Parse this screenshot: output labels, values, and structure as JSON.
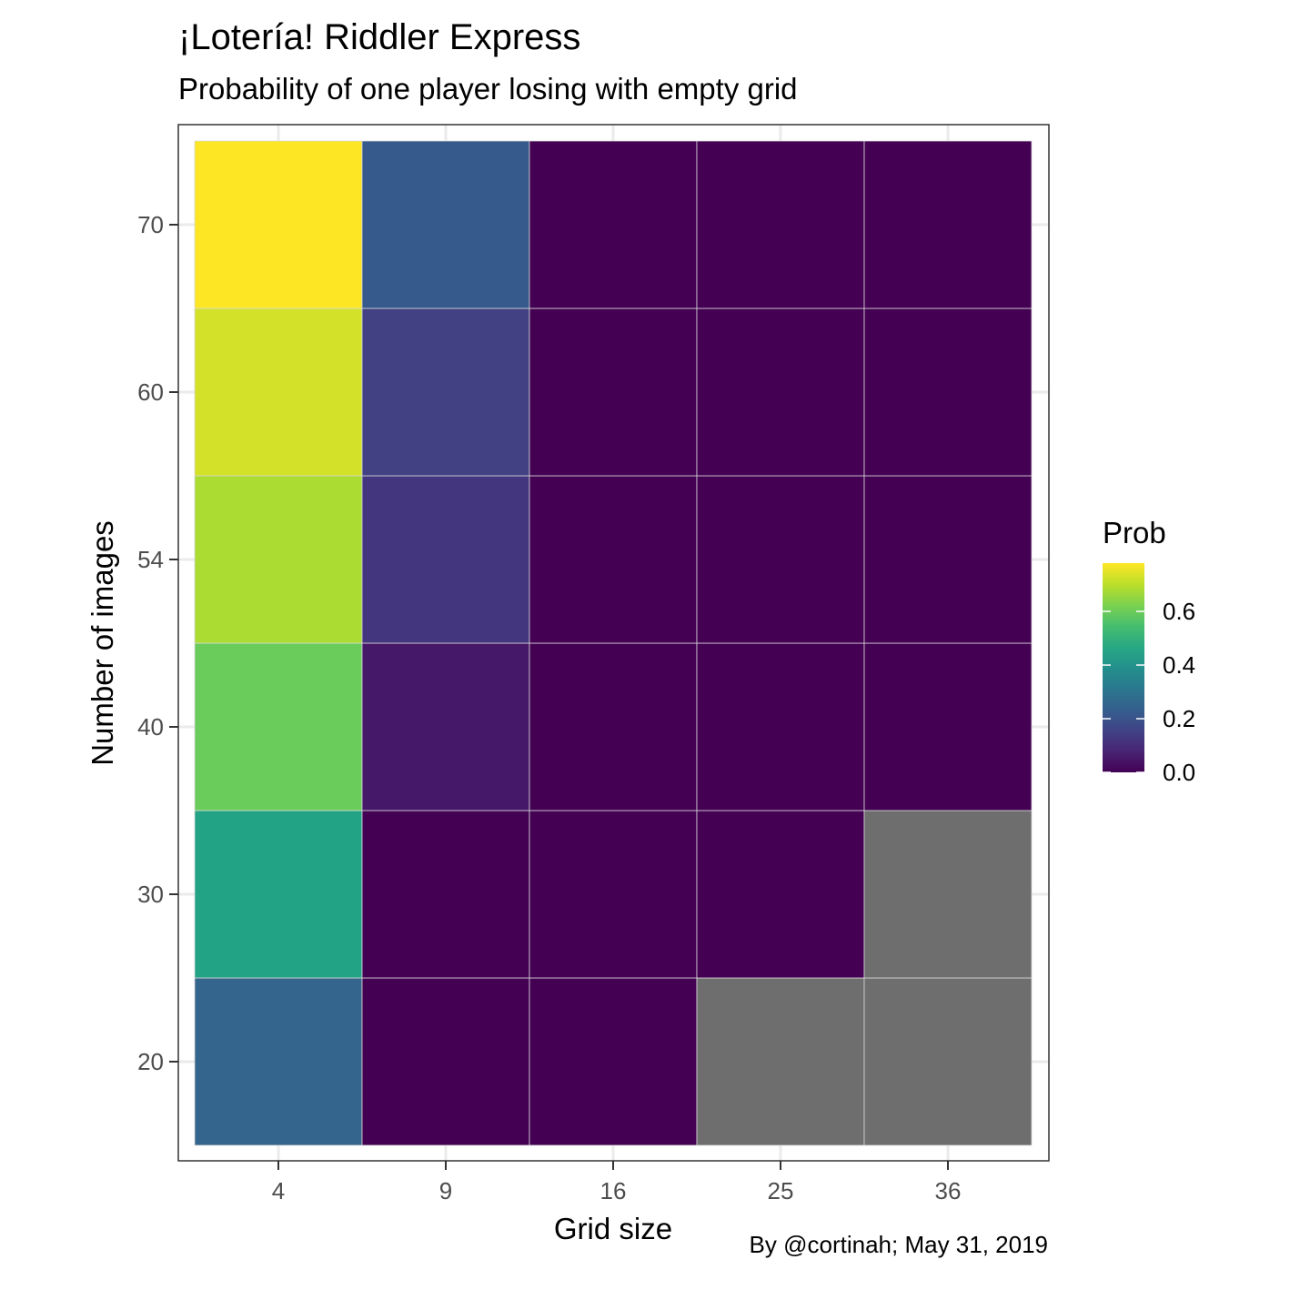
{
  "chart_data": {
    "type": "heatmap",
    "title": "¡Lotería! Riddler Express",
    "subtitle": "Probability of one player losing with empty grid",
    "xlabel": "Grid size",
    "ylabel": "Number of images",
    "caption": "By @cortinah; May 31, 2019",
    "x_categories": [
      "4",
      "9",
      "16",
      "25",
      "36"
    ],
    "y_categories": [
      "20",
      "30",
      "40",
      "54",
      "60",
      "70"
    ],
    "cells": [
      {
        "x": "4",
        "y": "20",
        "value": 0.25
      },
      {
        "x": "9",
        "y": "20",
        "value": 0.0
      },
      {
        "x": "16",
        "y": "20",
        "value": 0.0
      },
      {
        "x": "25",
        "y": "20",
        "value": null
      },
      {
        "x": "36",
        "y": "20",
        "value": null
      },
      {
        "x": "4",
        "y": "30",
        "value": 0.45
      },
      {
        "x": "9",
        "y": "30",
        "value": 0.0
      },
      {
        "x": "16",
        "y": "30",
        "value": 0.0
      },
      {
        "x": "25",
        "y": "30",
        "value": 0.0
      },
      {
        "x": "36",
        "y": "30",
        "value": null
      },
      {
        "x": "4",
        "y": "40",
        "value": 0.6
      },
      {
        "x": "9",
        "y": "40",
        "value": 0.05
      },
      {
        "x": "16",
        "y": "40",
        "value": 0.0
      },
      {
        "x": "25",
        "y": "40",
        "value": 0.0
      },
      {
        "x": "36",
        "y": "40",
        "value": 0.0
      },
      {
        "x": "4",
        "y": "54",
        "value": 0.68
      },
      {
        "x": "9",
        "y": "54",
        "value": 0.12
      },
      {
        "x": "16",
        "y": "54",
        "value": 0.0
      },
      {
        "x": "25",
        "y": "54",
        "value": 0.0
      },
      {
        "x": "36",
        "y": "54",
        "value": 0.0
      },
      {
        "x": "4",
        "y": "60",
        "value": 0.73
      },
      {
        "x": "9",
        "y": "60",
        "value": 0.15
      },
      {
        "x": "16",
        "y": "60",
        "value": 0.0
      },
      {
        "x": "25",
        "y": "60",
        "value": 0.0
      },
      {
        "x": "36",
        "y": "60",
        "value": 0.0
      },
      {
        "x": "4",
        "y": "70",
        "value": 0.78
      },
      {
        "x": "9",
        "y": "70",
        "value": 0.22
      },
      {
        "x": "16",
        "y": "70",
        "value": 0.0
      },
      {
        "x": "25",
        "y": "70",
        "value": 0.0
      },
      {
        "x": "36",
        "y": "70",
        "value": 0.0
      }
    ],
    "na_color": "#6e6e6e",
    "legend": {
      "title": "Prob",
      "position": "right",
      "range": [
        0.0,
        0.78
      ],
      "ticks": [
        0.0,
        0.2,
        0.4,
        0.6
      ],
      "tick_labels": [
        "0.0",
        "0.2",
        "0.4",
        "0.6"
      ],
      "colormap": "viridis"
    },
    "grid": true
  }
}
